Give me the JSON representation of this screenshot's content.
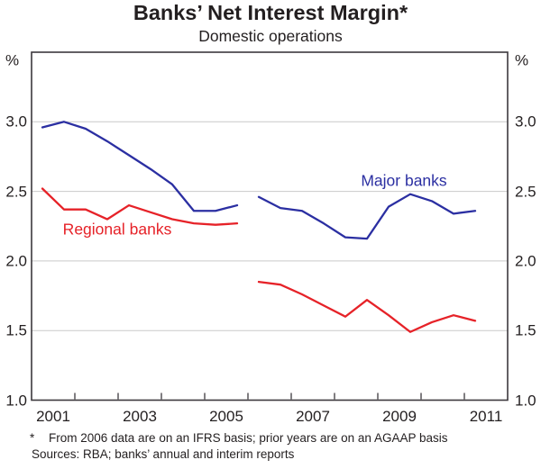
{
  "header": {
    "title": "Banks’ Net Interest Margin*",
    "subtitle": "Domestic operations"
  },
  "chart_data": {
    "type": "line",
    "title": "Banks’ Net Interest Margin*",
    "subtitle": "Domestic operations",
    "unit_label": "%",
    "x_range": [
      2001,
      2012
    ],
    "y_range": [
      1.0,
      3.5
    ],
    "y_ticks": [
      {
        "value": 3.0,
        "label": "3.0"
      },
      {
        "value": 2.5,
        "label": "2.5"
      },
      {
        "value": 2.0,
        "label": "2.0"
      },
      {
        "value": 1.5,
        "label": "1.5"
      },
      {
        "value": 1.0,
        "label": "1.0"
      }
    ],
    "grid_values": [
      1.5,
      2.0,
      2.5,
      3.0
    ],
    "x_tick_years": [
      2002,
      2003,
      2004,
      2005,
      2006,
      2007,
      2008,
      2009,
      2010,
      2011
    ],
    "x_labels": [
      {
        "year": 2001,
        "label": "2001"
      },
      {
        "year": 2003,
        "label": "2003"
      },
      {
        "year": 2005,
        "label": "2005"
      },
      {
        "year": 2007,
        "label": "2007"
      },
      {
        "year": 2009,
        "label": "2009"
      },
      {
        "year": 2011,
        "label": "2011"
      }
    ],
    "colors": {
      "major_banks": "#2b2fa2",
      "regional_banks": "#e62228",
      "grid": "#c9c9c9",
      "axis": "#3c383d"
    },
    "legend_position": "inline-labels",
    "series": [
      {
        "name": "Major banks",
        "color": "#2b2fa2",
        "segments": [
          [
            [
              2001.25,
              2.96
            ],
            [
              2001.75,
              3.0
            ],
            [
              2002.25,
              2.95
            ],
            [
              2002.75,
              2.86
            ],
            [
              2003.25,
              2.76
            ],
            [
              2003.75,
              2.66
            ],
            [
              2004.25,
              2.55
            ],
            [
              2004.75,
              2.36
            ],
            [
              2005.25,
              2.36
            ],
            [
              2005.75,
              2.4
            ]
          ],
          [
            [
              2006.25,
              2.46
            ],
            [
              2006.75,
              2.38
            ],
            [
              2007.25,
              2.36
            ],
            [
              2007.75,
              2.27
            ],
            [
              2008.25,
              2.17
            ],
            [
              2008.75,
              2.16
            ],
            [
              2009.25,
              2.39
            ],
            [
              2009.75,
              2.48
            ],
            [
              2010.25,
              2.43
            ],
            [
              2010.75,
              2.34
            ],
            [
              2011.25,
              2.36
            ]
          ]
        ]
      },
      {
        "name": "Regional banks",
        "color": "#e62228",
        "segments": [
          [
            [
              2001.25,
              2.52
            ],
            [
              2001.75,
              2.37
            ],
            [
              2002.25,
              2.37
            ],
            [
              2002.75,
              2.3
            ],
            [
              2003.25,
              2.4
            ],
            [
              2003.75,
              2.35
            ],
            [
              2004.25,
              2.3
            ],
            [
              2004.75,
              2.27
            ],
            [
              2005.25,
              2.26
            ],
            [
              2005.75,
              2.27
            ]
          ],
          [
            [
              2006.25,
              1.85
            ],
            [
              2006.75,
              1.83
            ],
            [
              2007.25,
              1.76
            ],
            [
              2007.75,
              1.68
            ],
            [
              2008.25,
              1.6
            ],
            [
              2008.75,
              1.72
            ],
            [
              2009.25,
              1.61
            ],
            [
              2009.75,
              1.49
            ],
            [
              2010.25,
              1.56
            ],
            [
              2010.75,
              1.61
            ],
            [
              2011.25,
              1.57
            ]
          ]
        ]
      }
    ]
  },
  "footnote": {
    "marker": "*",
    "line1": "From 2006 data are on an IFRS basis; prior years are on an AGAAP basis",
    "sources": "Sources: RBA; banks’ annual and interim reports"
  }
}
